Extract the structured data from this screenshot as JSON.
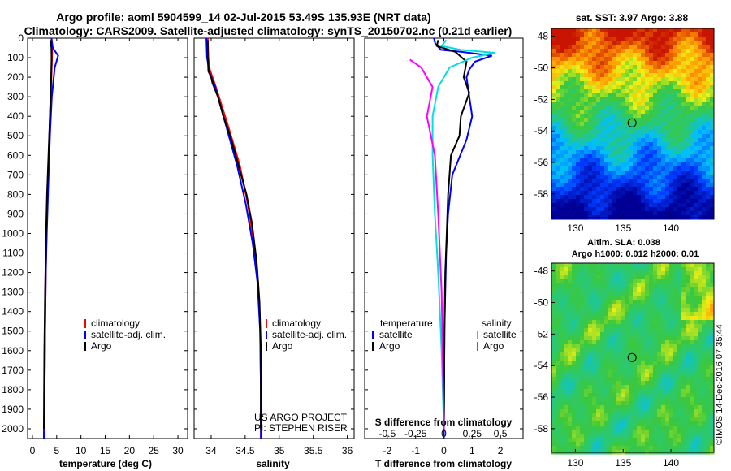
{
  "figure": {
    "title_line1": "Argo profile: aoml 5904599_14 02-Jul-2015 53.49S 135.93E (NRT data)",
    "title_line2": "Climatology: CARS2009. Satellite-adjusted climatology: synTS_20150702.nc (0.21d earlier)",
    "credit_project": "US ARGO PROJECT",
    "credit_pi": "PI: STEPHEN RISER",
    "imos_stamp": "©IMOS 14-Dec-2016 07:35:44"
  },
  "colors": {
    "climatology": "#ff0000",
    "satellite": "#0000ff",
    "argo": "#000000",
    "sat_salinity": "#00e0e0",
    "salinity_diff": "#ff00ff"
  },
  "chart_data": [
    {
      "id": "temperature",
      "type": "line",
      "xlabel": "temperature (deg C)",
      "ylabel": "",
      "xlim": [
        -1,
        32
      ],
      "ylim": [
        2050,
        0
      ],
      "xticks": [
        0,
        5,
        10,
        15,
        20,
        25,
        30
      ],
      "yticks": [
        0,
        100,
        200,
        300,
        400,
        500,
        600,
        700,
        800,
        900,
        1000,
        1100,
        1200,
        1300,
        1400,
        1500,
        1600,
        1700,
        1800,
        1900,
        2000
      ],
      "legend": [
        "climatology",
        "satellite-adj. clim.",
        "Argo"
      ],
      "series": [
        {
          "name": "climatology",
          "color": "red",
          "x": [
            3.95,
            4.1,
            4.05,
            3.9,
            3.6,
            3.35,
            3.1,
            2.9,
            2.75,
            2.6,
            2.5,
            2.35
          ],
          "y": [
            0,
            50,
            100,
            200,
            400,
            600,
            800,
            1000,
            1200,
            1500,
            1800,
            2050
          ]
        },
        {
          "name": "satellite-adj. clim.",
          "color": "blue",
          "x": [
            3.9,
            4.2,
            5.3,
            4.6,
            4.0,
            3.6,
            3.2,
            2.95,
            2.75,
            2.6,
            2.5,
            2.35
          ],
          "y": [
            0,
            50,
            90,
            150,
            300,
            500,
            800,
            1000,
            1200,
            1500,
            1800,
            2050
          ]
        },
        {
          "name": "Argo",
          "color": "black",
          "x": [
            3.7,
            3.9,
            3.95,
            3.85,
            3.6,
            3.3,
            3.0,
            2.8,
            2.6,
            2.45,
            2.35
          ],
          "y": [
            10,
            50,
            100,
            200,
            400,
            600,
            800,
            1000,
            1300,
            1600,
            2000
          ]
        }
      ]
    },
    {
      "id": "salinity",
      "type": "line",
      "xlabel": "salinity",
      "ylabel": "",
      "xlim": [
        33.75,
        36.1
      ],
      "ylim": [
        2050,
        0
      ],
      "xticks": [
        34,
        34.5,
        35,
        35.5,
        36
      ],
      "legend": [
        "climatology",
        "satellite-adj. clim.",
        "Argo"
      ],
      "series": [
        {
          "name": "climatology",
          "color": "red",
          "x": [
            33.95,
            33.96,
            33.98,
            34.07,
            34.25,
            34.42,
            34.54,
            34.63,
            34.69,
            34.72,
            34.73,
            34.73
          ],
          "y": [
            0,
            100,
            160,
            250,
            450,
            650,
            850,
            1050,
            1250,
            1500,
            1800,
            2050
          ]
        },
        {
          "name": "satellite-adj. clim.",
          "color": "blue",
          "x": [
            33.93,
            33.94,
            33.98,
            34.06,
            34.22,
            34.38,
            34.51,
            34.61,
            34.68,
            34.72,
            34.73,
            34.73
          ],
          "y": [
            0,
            100,
            180,
            250,
            450,
            650,
            850,
            1050,
            1250,
            1500,
            1800,
            2050
          ]
        },
        {
          "name": "Argo",
          "color": "black",
          "x": [
            33.95,
            33.95,
            33.96,
            34.0,
            34.02,
            34.1,
            34.18,
            34.28,
            34.4,
            34.52,
            34.6,
            34.67,
            34.71,
            34.73,
            34.73
          ],
          "y": [
            10,
            100,
            170,
            200,
            230,
            300,
            400,
            500,
            650,
            800,
            950,
            1150,
            1350,
            1600,
            2000
          ]
        }
      ]
    },
    {
      "id": "difference",
      "type": "line",
      "xlabel": "T difference from climatology",
      "xlabel_top": "S difference from climatology",
      "xlim": [
        -2.8,
        2.8
      ],
      "ylim": [
        2050,
        0
      ],
      "xticks": [
        -2,
        -1,
        0,
        1,
        2
      ],
      "xticks_s": [
        -0.5,
        -0.25,
        0,
        0.25,
        0.5
      ],
      "xticks_s_labels": [
        "-0.5",
        "-0.25",
        "0",
        "0.25",
        "0.5"
      ],
      "legend_left_title": "temperature",
      "legend_right_title": "salinity",
      "legend_left": [
        "satellite",
        "Argo"
      ],
      "legend_right": [
        "satellite",
        "Argo"
      ],
      "series": [
        {
          "name": "temperature satellite",
          "color": "blue",
          "x": [
            -0.35,
            -0.3,
            -0.1,
            0.6,
            1.7,
            1.1,
            0.9,
            0.8,
            0.9,
            1.0,
            0.8,
            0.3,
            0.15,
            0.08,
            0.05,
            0.02,
            0.01,
            0.0
          ],
          "y": [
            0,
            30,
            60,
            70,
            90,
            120,
            160,
            200,
            300,
            400,
            520,
            700,
            900,
            1100,
            1300,
            1500,
            1800,
            2050
          ]
        },
        {
          "name": "temperature Argo",
          "color": "black",
          "x": [
            -0.2,
            -0.25,
            0.4,
            0.8,
            0.7,
            0.9,
            0.6,
            0.55,
            0.25,
            0.15,
            0.1,
            0.05,
            0.02,
            0.0
          ],
          "y": [
            10,
            40,
            70,
            120,
            200,
            280,
            400,
            500,
            600,
            800,
            1000,
            1200,
            1500,
            2000
          ]
        },
        {
          "name": "salinity satellite",
          "color": "cyan",
          "x": [
            0.02,
            -0.02,
            0.15,
            0.45,
            0.25,
            0.05,
            -0.05,
            -0.1,
            -0.1,
            -0.08,
            -0.05,
            -0.02,
            0.0
          ],
          "y": [
            10,
            40,
            60,
            75,
            100,
            150,
            250,
            400,
            600,
            900,
            1200,
            1600,
            2000
          ]
        },
        {
          "name": "salinity Argo",
          "color": "magenta",
          "x": [
            -0.3,
            -0.2,
            -0.1,
            -0.15,
            -0.08,
            -0.05,
            -0.02,
            0.0
          ],
          "y": [
            110,
            150,
            250,
            400,
            600,
            900,
            1300,
            2000
          ]
        }
      ]
    },
    {
      "id": "sst_map",
      "type": "heatmap",
      "title": "sat. SST: 3.97 Argo: 3.88",
      "xlim": [
        127.5,
        144.5
      ],
      "ylim": [
        -59.5,
        -47.5
      ],
      "xticks": [
        130,
        135,
        140
      ],
      "yticks": [
        -48,
        -50,
        -52,
        -54,
        -56,
        -58
      ],
      "float_position": {
        "lon": 135.93,
        "lat": -53.49
      }
    },
    {
      "id": "sla_map",
      "type": "heatmap",
      "title": "Altim. SLA: 0.038",
      "subtitle": "Argo h1000: 0.012 h2000: 0.01",
      "xlim": [
        127.5,
        144.5
      ],
      "ylim": [
        -59.5,
        -47.5
      ],
      "xticks": [
        130,
        135,
        140
      ],
      "yticks": [
        -48,
        -50,
        -52,
        -54,
        -56,
        -58
      ],
      "float_position": {
        "lon": 135.93,
        "lat": -53.49
      }
    }
  ]
}
